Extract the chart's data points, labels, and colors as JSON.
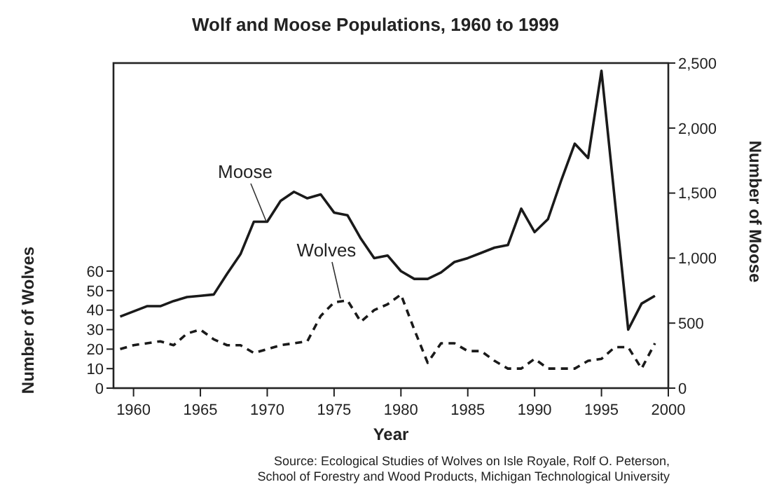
{
  "chart_data": {
    "type": "line",
    "title": "Wolf and Moose Populations, 1960 to 1999",
    "xlabel": "Year",
    "ylabel": "Number of Wolves",
    "y2label": "Number of Moose",
    "annotations": [
      "Source: Ecological Studies of Wolves on Isle Royale, Rolf O. Peterson,",
      "School of Forestry and Wood Products, Michigan Technological University"
    ],
    "series": [
      {
        "name": "Moose",
        "color": "#1a1a1a",
        "axis": "y2",
        "line_style": "solid",
        "x": [
          1959,
          1961,
          1962,
          1963,
          1964,
          1965,
          1966,
          1967,
          1968,
          1969,
          1970,
          1971,
          1972,
          1973,
          1974,
          1975,
          1976,
          1977,
          1978,
          1979,
          1980,
          1981,
          1982,
          1983,
          1984,
          1985,
          1986,
          1987,
          1988,
          1989,
          1990,
          1991,
          1992,
          1993,
          1994,
          1995,
          1997,
          1998,
          1999
        ],
        "values": [
          550,
          630,
          630,
          670,
          700,
          710,
          720,
          880,
          1030,
          1280,
          1280,
          1440,
          1510,
          1460,
          1490,
          1350,
          1330,
          1150,
          1000,
          1020,
          900,
          840,
          840,
          890,
          970,
          1000,
          1040,
          1080,
          1100,
          1380,
          1200,
          1300,
          1600,
          1880,
          1770,
          2440,
          450,
          650,
          710
        ]
      },
      {
        "name": "Wolves",
        "color": "#1a1a1a",
        "axis": "y",
        "line_style": "dashed",
        "x": [
          1959,
          1960,
          1961,
          1962,
          1963,
          1964,
          1965,
          1966,
          1967,
          1968,
          1969,
          1970,
          1971,
          1972,
          1973,
          1974,
          1975,
          1976,
          1977,
          1978,
          1979,
          1980,
          1981,
          1982,
          1983,
          1984,
          1985,
          1986,
          1987,
          1988,
          1989,
          1990,
          1991,
          1992,
          1993,
          1994,
          1995,
          1996,
          1997,
          1998,
          1999
        ],
        "values": [
          20,
          22,
          23,
          24,
          22,
          28,
          30,
          25,
          22,
          22,
          18,
          20,
          22,
          23,
          24,
          37,
          44,
          45,
          34,
          40,
          43,
          48,
          30,
          13,
          23,
          23,
          19,
          19,
          14,
          10,
          10,
          15,
          10,
          10,
          10,
          14,
          15,
          21,
          21,
          10,
          23
        ]
      }
    ],
    "xlim": [
      1958.5,
      2000
    ],
    "xticks": [
      1960,
      1965,
      1970,
      1975,
      1980,
      1985,
      1990,
      1995,
      2000
    ],
    "ylim": [
      0,
      166.7
    ],
    "yticks": [
      0,
      10,
      20,
      30,
      40,
      50,
      60
    ],
    "y2lim": [
      0,
      2500
    ],
    "y2ticks": [
      0,
      {
        "value": 500,
        "label": "500"
      },
      {
        "value": 1000,
        "label": "1,000"
      },
      {
        "value": 1500,
        "label": "1,500"
      },
      {
        "value": 2000,
        "label": "2,000"
      },
      {
        "value": 2500,
        "label": "2,500"
      }
    ],
    "grid": false
  }
}
